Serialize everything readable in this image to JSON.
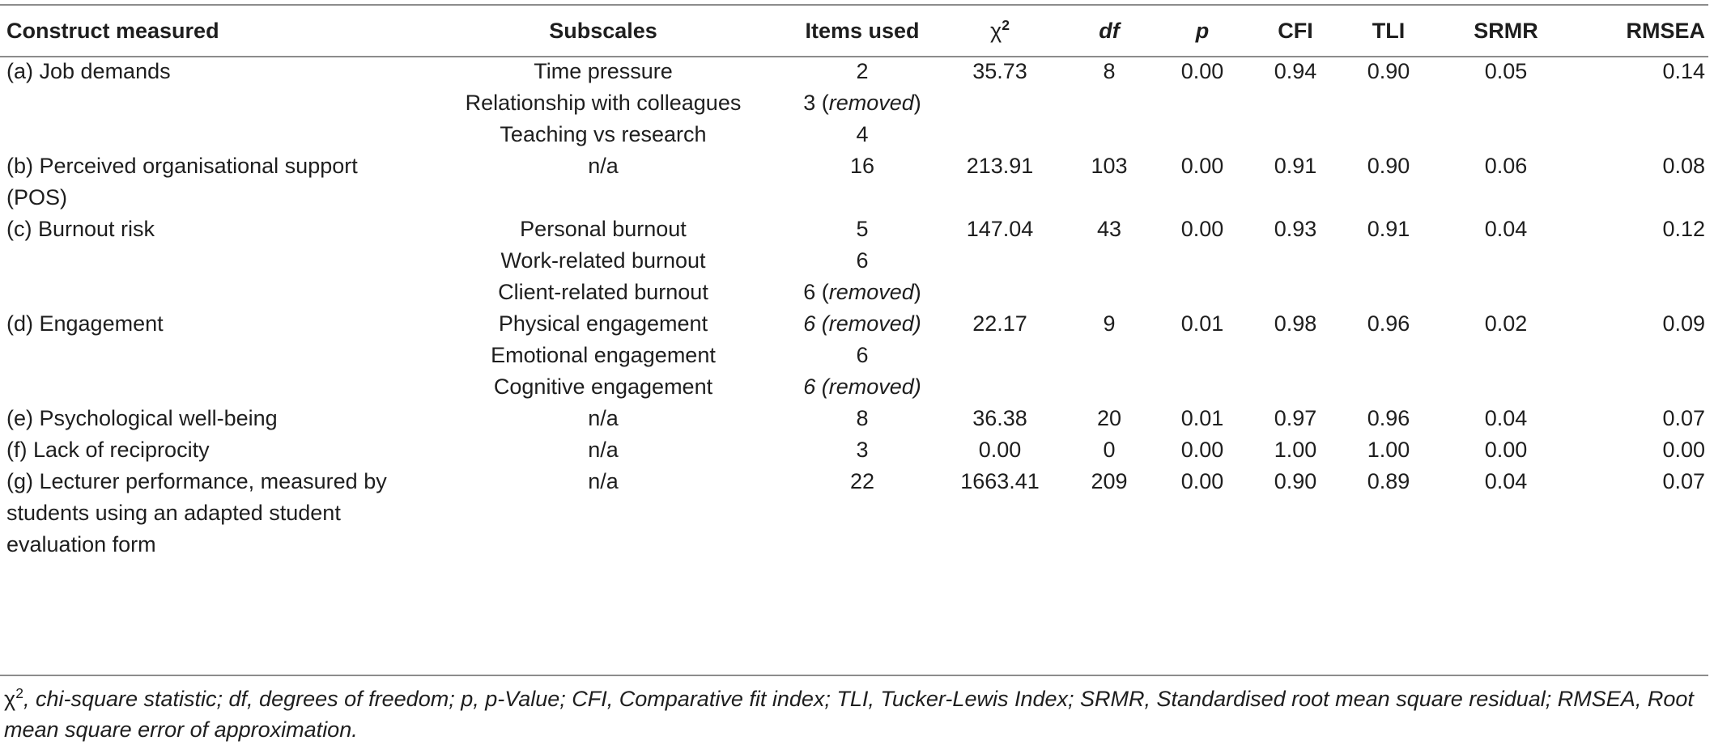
{
  "columns": {
    "construct": "Construct measured",
    "subscales": "Subscales",
    "items": "Items used",
    "chi_symbol": "χ",
    "chi_sup": "2",
    "df": "df",
    "p": "p",
    "cfi": "CFI",
    "tli": "TLI",
    "srmr": "SRMR",
    "rmsea": "RMSEA"
  },
  "rows": [
    {
      "construct": "(a) Job demands",
      "subscale": "Time pressure",
      "items": "2",
      "items_note": "",
      "chi2": "35.73",
      "df": "8",
      "p": "0.00",
      "cfi": "0.94",
      "tli": "0.90",
      "srmr": "0.05",
      "rmsea": "0.14"
    },
    {
      "construct": "",
      "subscale": "Relationship with colleagues",
      "items": "3 (",
      "items_note": "removed",
      "items_close": ")",
      "chi2": "",
      "df": "",
      "p": "",
      "cfi": "",
      "tli": "",
      "srmr": "",
      "rmsea": ""
    },
    {
      "construct": "",
      "subscale": "Teaching vs research",
      "items": "4",
      "items_note": "",
      "chi2": "",
      "df": "",
      "p": "",
      "cfi": "",
      "tli": "",
      "srmr": "",
      "rmsea": ""
    },
    {
      "construct": "(b) Perceived organisational support (POS)",
      "subscale": "n/a",
      "items": "16",
      "items_note": "",
      "chi2": "213.91",
      "df": "103",
      "p": "0.00",
      "cfi": "0.91",
      "tli": "0.90",
      "srmr": "0.06",
      "rmsea": "0.08"
    },
    {
      "construct": "(c) Burnout risk",
      "subscale": "Personal burnout",
      "items": "5",
      "items_note": "",
      "chi2": "147.04",
      "df": "43",
      "p": "0.00",
      "cfi": "0.93",
      "tli": "0.91",
      "srmr": "0.04",
      "rmsea": "0.12"
    },
    {
      "construct": "",
      "subscale": "Work-related burnout",
      "items": "6",
      "items_note": "",
      "chi2": "",
      "df": "",
      "p": "",
      "cfi": "",
      "tli": "",
      "srmr": "",
      "rmsea": ""
    },
    {
      "construct": "",
      "subscale": "Client-related burnout",
      "items": "6 (",
      "items_note": "removed",
      "items_close": ")",
      "chi2": "",
      "df": "",
      "p": "",
      "cfi": "",
      "tli": "",
      "srmr": "",
      "rmsea": ""
    },
    {
      "construct": "(d) Engagement",
      "subscale": "Physical engagement",
      "items": "6 (",
      "items_note": "removed",
      "items_close": ")",
      "items_all_italic": true,
      "chi2": "22.17",
      "df": "9",
      "p": "0.01",
      "cfi": "0.98",
      "tli": "0.96",
      "srmr": "0.02",
      "rmsea": "0.09"
    },
    {
      "construct": "",
      "subscale": "Emotional engagement",
      "items": "6",
      "items_note": "",
      "chi2": "",
      "df": "",
      "p": "",
      "cfi": "",
      "tli": "",
      "srmr": "",
      "rmsea": ""
    },
    {
      "construct": "",
      "subscale": "Cognitive engagement",
      "items": "6 (",
      "items_note": "removed",
      "items_close": ")",
      "items_all_italic": true,
      "chi2": "",
      "df": "",
      "p": "",
      "cfi": "",
      "tli": "",
      "srmr": "",
      "rmsea": ""
    },
    {
      "construct": "(e) Psychological well-being",
      "subscale": "n/a",
      "items": "8",
      "items_note": "",
      "chi2": "36.38",
      "df": "20",
      "p": "0.01",
      "cfi": "0.97",
      "tli": "0.96",
      "srmr": "0.04",
      "rmsea": "0.07"
    },
    {
      "construct": "(f) Lack of reciprocity",
      "subscale": "n/a",
      "items": "3",
      "items_note": "",
      "chi2": "0.00",
      "df": "0",
      "p": "0.00",
      "cfi": "1.00",
      "tli": "1.00",
      "srmr": "0.00",
      "rmsea": "0.00"
    },
    {
      "construct": "(g) Lecturer performance, measured by students using an adapted student evaluation form",
      "subscale": "n/a",
      "items": "22",
      "items_note": "",
      "chi2": "1663.41",
      "df": "209",
      "p": "0.00",
      "cfi": "0.90",
      "tli": "0.89",
      "srmr": "0.04",
      "rmsea": "0.07"
    }
  ],
  "footnote": {
    "chi_symbol": "χ",
    "chi_sup": "2",
    "text": ", chi-square statistic; df, degrees of freedom; p, p-Value; CFI, Comparative fit index; TLI, Tucker-Lewis Index; SRMR, Standardised root mean square residual; RMSEA, Root mean square error of approximation."
  }
}
